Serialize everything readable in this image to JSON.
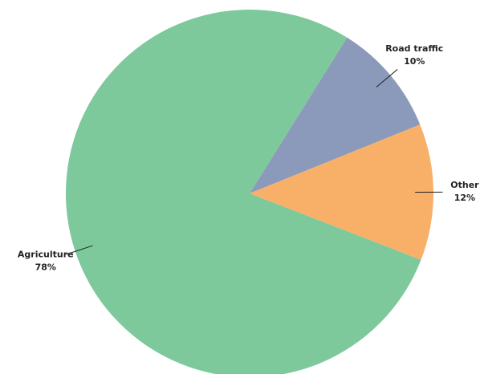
{
  "chart_data": {
    "type": "pie",
    "categories": [
      "Road traffic",
      "Other",
      "Agriculture"
    ],
    "values": [
      10,
      12,
      78
    ],
    "value_labels": [
      "10%",
      "12%",
      "78%"
    ],
    "colors": [
      "#8b9aba",
      "#f8b068",
      "#7dc99b"
    ]
  }
}
